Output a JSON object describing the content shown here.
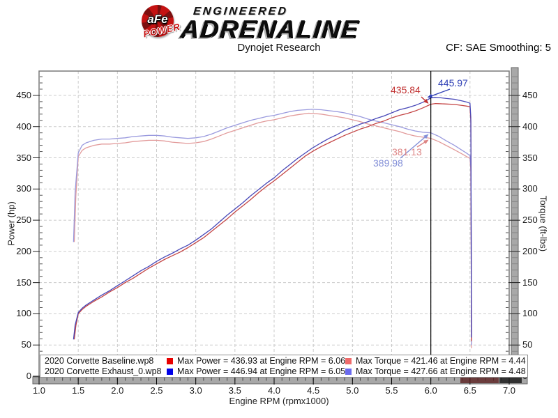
{
  "header": {
    "brand_abbr": "aFe",
    "brand_sub": "POWER",
    "tagline_top": "ENGINEERED",
    "tagline_main": "ADRENALINE",
    "subtitle": "Dynojet Research",
    "smoothing": "CF: SAE Smoothing: 5"
  },
  "annotations": {
    "power_baseline": {
      "text": "435.84",
      "value": 435.84,
      "rpm": 6.0,
      "color": "#c03030"
    },
    "power_exhaust": {
      "text": "445.97",
      "value": 445.97,
      "rpm": 6.0,
      "color": "#2e3fb5"
    },
    "torque_baseline": {
      "text": "381.13",
      "value": 381.13,
      "rpm": 6.0,
      "color": "#dd8585"
    },
    "torque_exhaust": {
      "text": "389.98",
      "value": 389.98,
      "rpm": 6.0,
      "color": "#8490d8"
    }
  },
  "legend": {
    "rows": [
      {
        "file": "2020 Corvette Baseline.wp8",
        "power_color": "#e80000",
        "power_text": "Max Power = 436.93 at Engine RPM = 6.06",
        "torque_color": "#ef6b6b",
        "torque_text": "Max Torque = 421.46 at Engine RPM = 4.44"
      },
      {
        "file": "2020 Corvette Exhaust_0.wp8",
        "power_color": "#0000e8",
        "power_text": "Max Power = 446.94 at Engine RPM = 6.05",
        "torque_color": "#6b6bef",
        "torque_text": "Max Torque = 427.66 at Engine RPM = 4.48"
      }
    ]
  },
  "chart_data": {
    "type": "line",
    "title": "Dynojet Research",
    "xlabel": "Engine RPM (rpmx1000)",
    "ylabel_left": "Power (hp)",
    "ylabel_right": "Torque (ft-lbs)",
    "xlim": [
      1.0,
      7.0
    ],
    "ylim": [
      0,
      489
    ],
    "grid": true,
    "cursor_rpm": 6.0,
    "zero_label": "0",
    "x_ticks": [
      {
        "v": 1.0,
        "label": "1.0"
      },
      {
        "v": 1.5,
        "label": "1.5"
      },
      {
        "v": 2.0,
        "label": "2.0"
      },
      {
        "v": 2.5,
        "label": "2.5"
      },
      {
        "v": 3.0,
        "label": "3.0"
      },
      {
        "v": 3.5,
        "label": "3.5"
      },
      {
        "v": 4.0,
        "label": "4.0"
      },
      {
        "v": 4.5,
        "label": "4.5"
      },
      {
        "v": 5.0,
        "label": "5.0"
      },
      {
        "v": 5.5,
        "label": "5.5"
      },
      {
        "v": 6.0,
        "label": "6.0"
      },
      {
        "v": 6.5,
        "label": "6.5"
      },
      {
        "v": 7.0,
        "label": "7.0"
      }
    ],
    "y_ticks": [
      50,
      100,
      150,
      200,
      250,
      300,
      350,
      400,
      450
    ],
    "series": [
      {
        "name": "Baseline Torque",
        "unit": "ft-lbs",
        "color": "#e29a9a",
        "max": {
          "value": 421.46,
          "rpm": 4.44
        },
        "points": [
          [
            1.45,
            215
          ],
          [
            1.47,
            290
          ],
          [
            1.5,
            352
          ],
          [
            1.55,
            362
          ],
          [
            1.6,
            366
          ],
          [
            1.7,
            370
          ],
          [
            1.8,
            372
          ],
          [
            1.9,
            372
          ],
          [
            2.0,
            373
          ],
          [
            2.1,
            374
          ],
          [
            2.2,
            376
          ],
          [
            2.3,
            377
          ],
          [
            2.4,
            378
          ],
          [
            2.5,
            378
          ],
          [
            2.6,
            377
          ],
          [
            2.7,
            375
          ],
          [
            2.8,
            374
          ],
          [
            2.9,
            373
          ],
          [
            3.0,
            374
          ],
          [
            3.1,
            376
          ],
          [
            3.2,
            380
          ],
          [
            3.3,
            385
          ],
          [
            3.4,
            390
          ],
          [
            3.5,
            394
          ],
          [
            3.6,
            398
          ],
          [
            3.7,
            402
          ],
          [
            3.8,
            406
          ],
          [
            3.9,
            409
          ],
          [
            4.0,
            411
          ],
          [
            4.1,
            414
          ],
          [
            4.2,
            417
          ],
          [
            4.3,
            419
          ],
          [
            4.44,
            421.46
          ],
          [
            4.5,
            421
          ],
          [
            4.6,
            420
          ],
          [
            4.7,
            418
          ],
          [
            4.8,
            416
          ],
          [
            4.9,
            414
          ],
          [
            5.0,
            411
          ],
          [
            5.1,
            408
          ],
          [
            5.2,
            404
          ],
          [
            5.3,
            401
          ],
          [
            5.4,
            398
          ],
          [
            5.5,
            395
          ],
          [
            5.6,
            392
          ],
          [
            5.7,
            388
          ],
          [
            5.8,
            385
          ],
          [
            5.9,
            383
          ],
          [
            6.0,
            381.13
          ],
          [
            6.1,
            376
          ],
          [
            6.2,
            369.5
          ],
          [
            6.3,
            363
          ],
          [
            6.4,
            356
          ],
          [
            6.45,
            352.5
          ],
          [
            6.5,
            349
          ],
          [
            6.51,
            330
          ],
          [
            6.52,
            45
          ]
        ]
      },
      {
        "name": "Exhaust Torque",
        "unit": "ft-lbs",
        "color": "#9a9ade",
        "max": {
          "value": 427.66,
          "rpm": 4.48
        },
        "points": [
          [
            1.44,
            215
          ],
          [
            1.46,
            295
          ],
          [
            1.5,
            358
          ],
          [
            1.55,
            370
          ],
          [
            1.6,
            374
          ],
          [
            1.7,
            378
          ],
          [
            1.8,
            380
          ],
          [
            1.9,
            380
          ],
          [
            2.0,
            381
          ],
          [
            2.1,
            382
          ],
          [
            2.2,
            384
          ],
          [
            2.3,
            385
          ],
          [
            2.4,
            386
          ],
          [
            2.5,
            386
          ],
          [
            2.6,
            385
          ],
          [
            2.7,
            383
          ],
          [
            2.8,
            382
          ],
          [
            2.9,
            381
          ],
          [
            3.0,
            382
          ],
          [
            3.1,
            384
          ],
          [
            3.2,
            388
          ],
          [
            3.3,
            393
          ],
          [
            3.4,
            398
          ],
          [
            3.5,
            402
          ],
          [
            3.6,
            406
          ],
          [
            3.7,
            410
          ],
          [
            3.8,
            413
          ],
          [
            3.9,
            416
          ],
          [
            4.0,
            418
          ],
          [
            4.1,
            421
          ],
          [
            4.2,
            424
          ],
          [
            4.3,
            426
          ],
          [
            4.48,
            427.66
          ],
          [
            4.6,
            427
          ],
          [
            4.7,
            425.5
          ],
          [
            4.8,
            424
          ],
          [
            4.9,
            422
          ],
          [
            5.0,
            419
          ],
          [
            5.1,
            416
          ],
          [
            5.2,
            412
          ],
          [
            5.3,
            409
          ],
          [
            5.4,
            406
          ],
          [
            5.5,
            403
          ],
          [
            5.6,
            400
          ],
          [
            5.7,
            396
          ],
          [
            5.8,
            393
          ],
          [
            5.9,
            391
          ],
          [
            6.0,
            389.98
          ],
          [
            6.1,
            384.5
          ],
          [
            6.2,
            377
          ],
          [
            6.3,
            370
          ],
          [
            6.4,
            362
          ],
          [
            6.45,
            358
          ],
          [
            6.5,
            353.5
          ],
          [
            6.51,
            335
          ],
          [
            6.52,
            50
          ]
        ]
      },
      {
        "name": "Baseline Power",
        "unit": "hp",
        "color": "#c44545",
        "max": {
          "value": 436.93,
          "rpm": 6.06
        },
        "points": [
          [
            1.45,
            59
          ],
          [
            1.47,
            81
          ],
          [
            1.5,
            100
          ],
          [
            1.55,
            107
          ],
          [
            1.6,
            112
          ],
          [
            1.7,
            120
          ],
          [
            1.8,
            127
          ],
          [
            1.9,
            135
          ],
          [
            2.0,
            142
          ],
          [
            2.1,
            150
          ],
          [
            2.2,
            157
          ],
          [
            2.3,
            165
          ],
          [
            2.4,
            173
          ],
          [
            2.5,
            180
          ],
          [
            2.6,
            187
          ],
          [
            2.7,
            193
          ],
          [
            2.8,
            199
          ],
          [
            2.9,
            206
          ],
          [
            3.0,
            214
          ],
          [
            3.1,
            222
          ],
          [
            3.2,
            232
          ],
          [
            3.3,
            242
          ],
          [
            3.4,
            252
          ],
          [
            3.5,
            263
          ],
          [
            3.6,
            273
          ],
          [
            3.7,
            283
          ],
          [
            3.8,
            294
          ],
          [
            3.9,
            304
          ],
          [
            4.0,
            313
          ],
          [
            4.1,
            323
          ],
          [
            4.2,
            333
          ],
          [
            4.3,
            343
          ],
          [
            4.4,
            353
          ],
          [
            4.5,
            361
          ],
          [
            4.6,
            368
          ],
          [
            4.7,
            374
          ],
          [
            4.8,
            380
          ],
          [
            4.9,
            386
          ],
          [
            5.0,
            391
          ],
          [
            5.1,
            396
          ],
          [
            5.2,
            400
          ],
          [
            5.3,
            405
          ],
          [
            5.4,
            409
          ],
          [
            5.5,
            414
          ],
          [
            5.6,
            418
          ],
          [
            5.7,
            421
          ],
          [
            5.8,
            425
          ],
          [
            5.9,
            430
          ],
          [
            6.0,
            435.84
          ],
          [
            6.06,
            436.93
          ],
          [
            6.1,
            436.7
          ],
          [
            6.2,
            436.2
          ],
          [
            6.3,
            435.5
          ],
          [
            6.4,
            433.8
          ],
          [
            6.45,
            432.9
          ],
          [
            6.5,
            431.9
          ],
          [
            6.51,
            409
          ],
          [
            6.52,
            56
          ]
        ]
      },
      {
        "name": "Exhaust Power",
        "unit": "hp",
        "color": "#4747b8",
        "max": {
          "value": 446.94,
          "rpm": 6.05
        },
        "points": [
          [
            1.44,
            59
          ],
          [
            1.46,
            82
          ],
          [
            1.5,
            102
          ],
          [
            1.55,
            109
          ],
          [
            1.6,
            114
          ],
          [
            1.7,
            122
          ],
          [
            1.8,
            130
          ],
          [
            1.9,
            137
          ],
          [
            2.0,
            145
          ],
          [
            2.1,
            153
          ],
          [
            2.2,
            161
          ],
          [
            2.3,
            169
          ],
          [
            2.4,
            176
          ],
          [
            2.5,
            184
          ],
          [
            2.6,
            191
          ],
          [
            2.7,
            197
          ],
          [
            2.8,
            204
          ],
          [
            2.9,
            210
          ],
          [
            3.0,
            218
          ],
          [
            3.1,
            227
          ],
          [
            3.2,
            236
          ],
          [
            3.3,
            247
          ],
          [
            3.4,
            258
          ],
          [
            3.5,
            268
          ],
          [
            3.6,
            278
          ],
          [
            3.7,
            289
          ],
          [
            3.8,
            299
          ],
          [
            3.9,
            309
          ],
          [
            4.0,
            318
          ],
          [
            4.1,
            329
          ],
          [
            4.2,
            339
          ],
          [
            4.3,
            349
          ],
          [
            4.48,
            365
          ],
          [
            4.6,
            374
          ],
          [
            4.7,
            381
          ],
          [
            4.8,
            387
          ],
          [
            4.9,
            394
          ],
          [
            5.0,
            399
          ],
          [
            5.1,
            404
          ],
          [
            5.2,
            408
          ],
          [
            5.3,
            413
          ],
          [
            5.4,
            417
          ],
          [
            5.5,
            422
          ],
          [
            5.6,
            427
          ],
          [
            5.7,
            430
          ],
          [
            5.8,
            434
          ],
          [
            5.9,
            439
          ],
          [
            6.0,
            445.97
          ],
          [
            6.05,
            446.94
          ],
          [
            6.1,
            446.6
          ],
          [
            6.2,
            445.0
          ],
          [
            6.3,
            443.8
          ],
          [
            6.4,
            441.1
          ],
          [
            6.45,
            439.6
          ],
          [
            6.5,
            437.4
          ],
          [
            6.51,
            415
          ],
          [
            6.52,
            62
          ]
        ]
      }
    ]
  }
}
